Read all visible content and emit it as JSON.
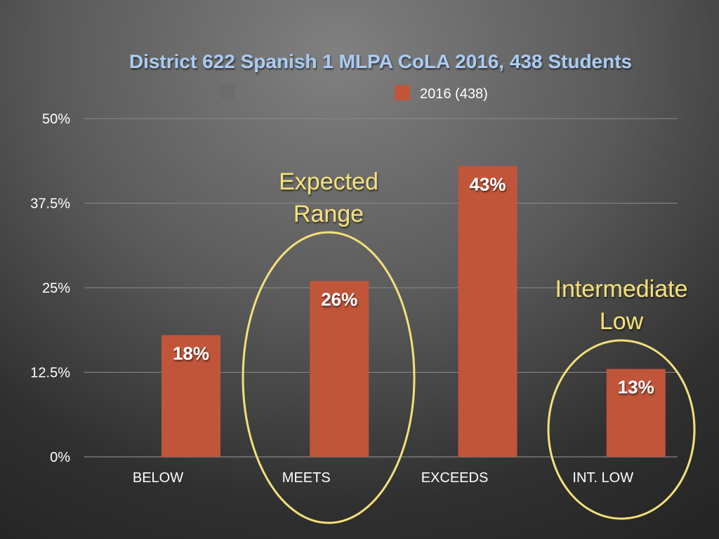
{
  "chart_data": {
    "type": "bar",
    "title": "District 622 Spanish 1 MLPA CoLA 2016, 438 Students",
    "categories": [
      "BELOW",
      "MEETS",
      "EXCEEDS",
      "INT. LOW"
    ],
    "series": [
      {
        "name": "2016 (438)",
        "values": [
          18,
          26,
          43,
          13
        ],
        "color": "#c1553a"
      }
    ],
    "legend_empty_entry_color": "#6c6c6c",
    "data_labels": [
      "18%",
      "26%",
      "43%",
      "13%"
    ],
    "y_ticks": [
      "0%",
      "12.5%",
      "25%",
      "37.5%",
      "50%"
    ],
    "ylim": [
      0,
      50
    ],
    "grid": true,
    "legend_position": "top",
    "annotations": [
      {
        "lines": [
          "Expected",
          "Range"
        ],
        "category": "MEETS"
      },
      {
        "lines": [
          "Intermediate",
          "Low"
        ],
        "category": "INT. LOW"
      }
    ],
    "annotation_color": "#f4e07a"
  }
}
